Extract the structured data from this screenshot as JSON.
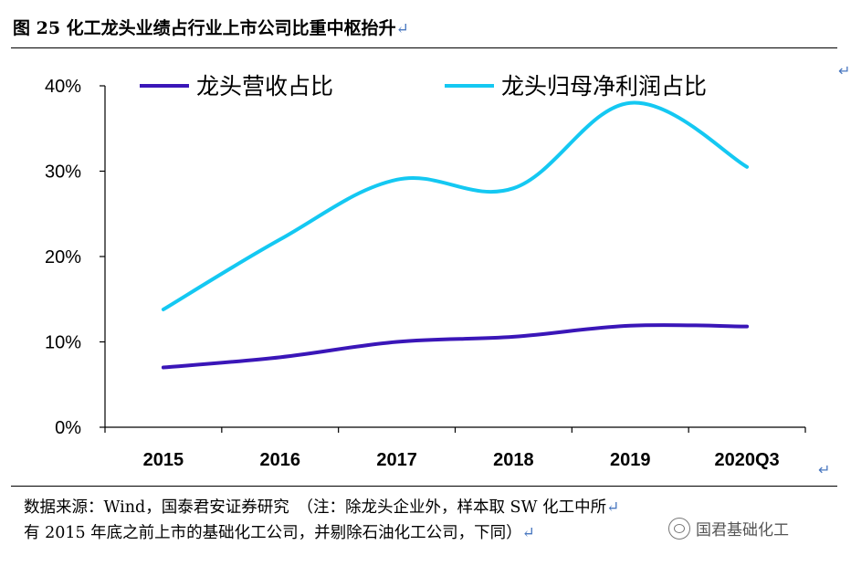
{
  "figure": {
    "title": "图 25 化工龙头业绩占行业上市公司比重中枢抬升",
    "return_mark": "↵"
  },
  "source": {
    "line1": "数据来源：Wind，国泰君安证券研究　（注：除龙头企业外，样本取 SW 化工中所",
    "line2": "有 2015 年底之前上市的基础化工公司，并剔除石油化工公司，下同）"
  },
  "watermark": {
    "text": "国君基础化工",
    "icon": "wechat-icon"
  },
  "chart_data": {
    "type": "line",
    "categories": [
      "2015",
      "2016",
      "2017",
      "2018",
      "2019",
      "2020Q3"
    ],
    "series": [
      {
        "name": "龙头营收占比",
        "color": "#3a16b8",
        "values": [
          7.0,
          8.2,
          10.0,
          10.6,
          11.9,
          11.8
        ]
      },
      {
        "name": "龙头归母净利润占比",
        "color": "#14c8f2",
        "values": [
          13.8,
          22.0,
          29.0,
          28.0,
          38.0,
          30.5
        ]
      }
    ],
    "ylim": [
      0,
      40
    ],
    "yticks": [
      "0%",
      "10%",
      "20%",
      "30%",
      "40%"
    ],
    "ytick_values": [
      0,
      10,
      20,
      30,
      40
    ],
    "grid": false,
    "legend": "top",
    "smooth": true
  }
}
